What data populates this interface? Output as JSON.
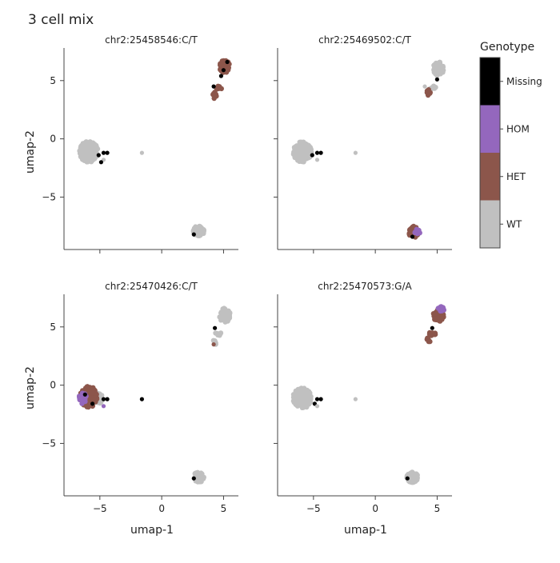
{
  "figure": {
    "title": "3 cell mix",
    "xlabel": "umap-1",
    "ylabel": "umap-2"
  },
  "legend": {
    "title": "Genotype",
    "categories": [
      {
        "label": "Missing",
        "color": "#000000"
      },
      {
        "label": "HOM",
        "color": "#9467bd"
      },
      {
        "label": "HET",
        "color": "#8c564b"
      },
      {
        "label": "WT",
        "color": "#c0c0c0"
      }
    ]
  },
  "chart_data": {
    "type": "scatter",
    "xlim": [
      -7.9,
      6.2
    ],
    "ylim": [
      -9.5,
      7.8
    ],
    "xticks": [
      -5,
      0,
      5
    ],
    "xtick_labels": [
      "−5",
      "0",
      "5"
    ],
    "yticks": [
      -5,
      0,
      5
    ],
    "ytick_labels": [
      "−5",
      "0",
      "5"
    ],
    "panels": [
      {
        "title": "chr2:25458546:C/T",
        "clusters": [
          {
            "x": -5.9,
            "y": -1.1,
            "rx": 0.75,
            "ry": 0.9,
            "n": 160,
            "genotype": "WT"
          },
          {
            "x": 5.1,
            "y": 6.2,
            "rx": 0.45,
            "ry": 0.55,
            "n": 55,
            "genotype": "HET"
          },
          {
            "x": 4.6,
            "y": 4.4,
            "rx": 0.3,
            "ry": 0.15,
            "n": 10,
            "genotype": "HET"
          },
          {
            "x": 4.3,
            "y": 3.8,
            "rx": 0.15,
            "ry": 0.4,
            "n": 8,
            "genotype": "HET"
          },
          {
            "x": 3.0,
            "y": -7.9,
            "rx": 0.45,
            "ry": 0.45,
            "n": 60,
            "genotype": "WT"
          }
        ],
        "points": [
          {
            "x": -5.1,
            "y": -1.4,
            "genotype": "Missing"
          },
          {
            "x": -4.7,
            "y": -1.2,
            "genotype": "Missing"
          },
          {
            "x": -4.4,
            "y": -1.2,
            "genotype": "Missing"
          },
          {
            "x": -4.7,
            "y": -1.8,
            "genotype": "WT"
          },
          {
            "x": -4.9,
            "y": -2.0,
            "genotype": "Missing"
          },
          {
            "x": -1.6,
            "y": -1.2,
            "genotype": "WT"
          },
          {
            "x": 2.6,
            "y": -8.2,
            "genotype": "Missing"
          },
          {
            "x": 5.0,
            "y": 5.9,
            "genotype": "Missing"
          },
          {
            "x": 5.3,
            "y": 6.6,
            "genotype": "Missing"
          },
          {
            "x": 4.8,
            "y": 5.4,
            "genotype": "Missing"
          },
          {
            "x": 4.2,
            "y": 4.5,
            "genotype": "Missing"
          }
        ]
      },
      {
        "title": "chr2:25469502:C/T",
        "clusters": [
          {
            "x": -5.9,
            "y": -1.1,
            "rx": 0.75,
            "ry": 0.9,
            "n": 160,
            "genotype": "WT"
          },
          {
            "x": 5.1,
            "y": 6.0,
            "rx": 0.45,
            "ry": 0.6,
            "n": 55,
            "genotype": "WT"
          },
          {
            "x": 4.6,
            "y": 4.4,
            "rx": 0.3,
            "ry": 0.15,
            "n": 10,
            "genotype": "WT"
          },
          {
            "x": 4.3,
            "y": 3.9,
            "rx": 0.15,
            "ry": 0.35,
            "n": 8,
            "genotype": "HET"
          },
          {
            "x": 3.1,
            "y": -8.0,
            "rx": 0.4,
            "ry": 0.5,
            "n": 55,
            "genotype": "HET"
          },
          {
            "x": 3.4,
            "y": -8.0,
            "rx": 0.25,
            "ry": 0.25,
            "n": 12,
            "genotype": "HOM"
          }
        ],
        "points": [
          {
            "x": -5.1,
            "y": -1.4,
            "genotype": "Missing"
          },
          {
            "x": -4.7,
            "y": -1.2,
            "genotype": "Missing"
          },
          {
            "x": -4.4,
            "y": -1.2,
            "genotype": "Missing"
          },
          {
            "x": -4.7,
            "y": -1.8,
            "genotype": "WT"
          },
          {
            "x": -1.6,
            "y": -1.2,
            "genotype": "WT"
          },
          {
            "x": 5.0,
            "y": 5.1,
            "genotype": "Missing"
          },
          {
            "x": 4.0,
            "y": 4.5,
            "genotype": "WT"
          },
          {
            "x": 3.0,
            "y": -8.4,
            "genotype": "Missing"
          }
        ]
      },
      {
        "title": "chr2:25470426:C/T",
        "clusters": [
          {
            "x": -5.9,
            "y": -1.0,
            "rx": 0.7,
            "ry": 0.9,
            "n": 110,
            "genotype": "HET"
          },
          {
            "x": -6.4,
            "y": -1.1,
            "rx": 0.3,
            "ry": 0.5,
            "n": 18,
            "genotype": "HOM"
          },
          {
            "x": -5.1,
            "y": -1.1,
            "rx": 0.3,
            "ry": 0.5,
            "n": 25,
            "genotype": "WT"
          },
          {
            "x": 5.1,
            "y": 6.0,
            "rx": 0.45,
            "ry": 0.6,
            "n": 55,
            "genotype": "WT"
          },
          {
            "x": 4.6,
            "y": 4.4,
            "rx": 0.3,
            "ry": 0.15,
            "n": 10,
            "genotype": "WT"
          },
          {
            "x": 4.3,
            "y": 3.8,
            "rx": 0.15,
            "ry": 0.35,
            "n": 8,
            "genotype": "WT"
          },
          {
            "x": 3.0,
            "y": -7.9,
            "rx": 0.45,
            "ry": 0.45,
            "n": 60,
            "genotype": "WT"
          }
        ],
        "points": [
          {
            "x": -6.2,
            "y": -0.8,
            "genotype": "Missing"
          },
          {
            "x": -5.6,
            "y": -1.6,
            "genotype": "Missing"
          },
          {
            "x": -4.7,
            "y": -1.2,
            "genotype": "Missing"
          },
          {
            "x": -4.4,
            "y": -1.2,
            "genotype": "Missing"
          },
          {
            "x": -4.7,
            "y": -1.8,
            "genotype": "HOM"
          },
          {
            "x": -1.6,
            "y": -1.2,
            "genotype": "Missing"
          },
          {
            "x": 4.3,
            "y": 4.9,
            "genotype": "Missing"
          },
          {
            "x": 4.2,
            "y": 3.5,
            "genotype": "HET"
          },
          {
            "x": 2.6,
            "y": -8.0,
            "genotype": "Missing"
          }
        ]
      },
      {
        "title": "chr2:25470573:G/A",
        "clusters": [
          {
            "x": -5.9,
            "y": -1.1,
            "rx": 0.75,
            "ry": 0.9,
            "n": 160,
            "genotype": "WT"
          },
          {
            "x": 5.1,
            "y": 6.0,
            "rx": 0.45,
            "ry": 0.55,
            "n": 50,
            "genotype": "HET"
          },
          {
            "x": 5.3,
            "y": 6.5,
            "rx": 0.25,
            "ry": 0.25,
            "n": 10,
            "genotype": "HOM"
          },
          {
            "x": 4.6,
            "y": 4.4,
            "rx": 0.3,
            "ry": 0.15,
            "n": 10,
            "genotype": "HET"
          },
          {
            "x": 4.3,
            "y": 3.8,
            "rx": 0.15,
            "ry": 0.35,
            "n": 8,
            "genotype": "HET"
          },
          {
            "x": 3.0,
            "y": -7.9,
            "rx": 0.45,
            "ry": 0.45,
            "n": 60,
            "genotype": "WT"
          }
        ],
        "points": [
          {
            "x": -4.7,
            "y": -1.2,
            "genotype": "Missing"
          },
          {
            "x": -4.4,
            "y": -1.2,
            "genotype": "Missing"
          },
          {
            "x": -4.9,
            "y": -1.6,
            "genotype": "Missing"
          },
          {
            "x": -4.7,
            "y": -1.8,
            "genotype": "WT"
          },
          {
            "x": -1.6,
            "y": -1.2,
            "genotype": "WT"
          },
          {
            "x": 4.6,
            "y": 4.9,
            "genotype": "Missing"
          },
          {
            "x": 2.6,
            "y": -8.0,
            "genotype": "Missing"
          }
        ]
      }
    ]
  }
}
